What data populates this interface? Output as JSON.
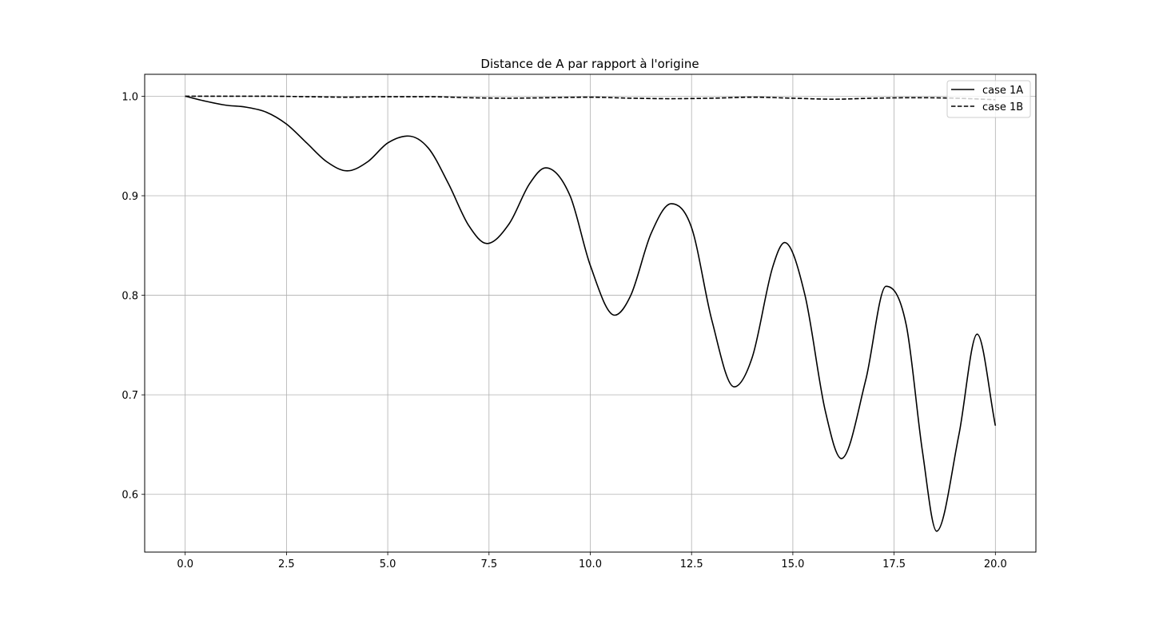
{
  "chart_data": {
    "type": "line",
    "title": "Distance de A par rapport à l'origine",
    "xlabel": "",
    "ylabel": "",
    "xlim": [
      -1.0,
      21.0
    ],
    "ylim": [
      0.542,
      1.022
    ],
    "grid": true,
    "legend_position": "top-right",
    "x_ticks": [
      0.0,
      2.5,
      5.0,
      7.5,
      10.0,
      12.5,
      15.0,
      17.5,
      20.0
    ],
    "x_tick_labels": [
      "0.0",
      "2.5",
      "5.0",
      "7.5",
      "10.0",
      "12.5",
      "15.0",
      "17.5",
      "20.0"
    ],
    "y_ticks": [
      0.6,
      0.7,
      0.8,
      0.9,
      1.0
    ],
    "y_tick_labels": [
      "0.6",
      "0.7",
      "0.8",
      "0.9",
      "1.0"
    ],
    "series": [
      {
        "name": "case 1A",
        "style": "solid",
        "color": "#000000",
        "x": [
          0.0,
          0.5,
          1.0,
          1.5,
          2.0,
          2.5,
          3.0,
          3.5,
          4.0,
          4.5,
          5.0,
          5.5,
          6.0,
          6.5,
          7.0,
          7.45,
          8.0,
          8.5,
          8.9,
          9.5,
          10.0,
          10.6,
          11.0,
          11.5,
          12.0,
          12.5,
          13.0,
          13.55,
          14.0,
          14.5,
          14.8,
          15.3,
          15.8,
          16.2,
          16.8,
          17.3,
          17.8,
          18.2,
          18.55,
          19.1,
          19.55,
          20.0
        ],
        "y": [
          1.0,
          0.995,
          0.991,
          0.989,
          0.984,
          0.972,
          0.953,
          0.934,
          0.925,
          0.934,
          0.953,
          0.96,
          0.948,
          0.912,
          0.87,
          0.852,
          0.872,
          0.912,
          0.928,
          0.9,
          0.83,
          0.78,
          0.8,
          0.862,
          0.892,
          0.868,
          0.775,
          0.708,
          0.738,
          0.828,
          0.853,
          0.8,
          0.684,
          0.636,
          0.715,
          0.809,
          0.77,
          0.643,
          0.563,
          0.66,
          0.761,
          0.669
        ]
      },
      {
        "name": "case 1B",
        "style": "dashed",
        "color": "#000000",
        "x": [
          0.0,
          1.0,
          2.0,
          3.0,
          4.0,
          5.0,
          6.0,
          7.0,
          8.0,
          9.0,
          10.0,
          11.0,
          12.0,
          13.0,
          14.0,
          15.0,
          16.0,
          17.0,
          18.0,
          19.0,
          20.0
        ],
        "y": [
          1.0,
          1.0,
          1.0,
          0.9995,
          0.999,
          0.9995,
          0.9995,
          0.9985,
          0.998,
          0.9985,
          0.999,
          0.998,
          0.9975,
          0.998,
          0.999,
          0.998,
          0.997,
          0.998,
          0.9985,
          0.998,
          0.9965
        ]
      }
    ]
  }
}
